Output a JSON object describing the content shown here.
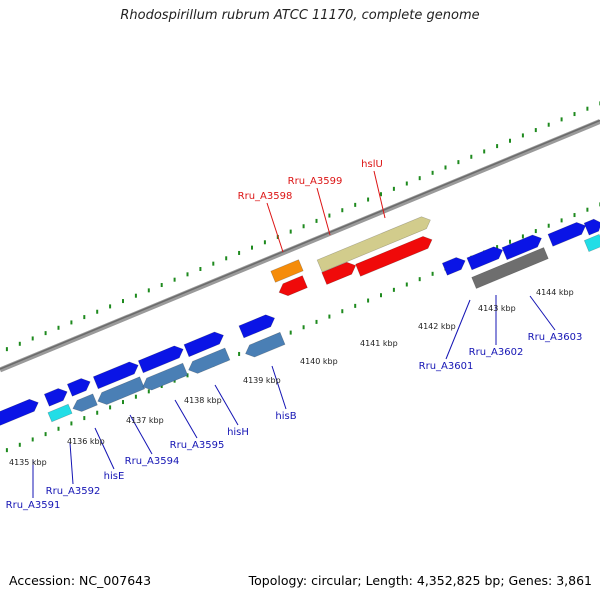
{
  "title": "Rhodospirillum rubrum ATCC 11170, complete genome",
  "footer": {
    "accession": "Accession: NC_007643",
    "info": "Topology: circular; Length: 4,352,825 bp; Genes: 3,861"
  },
  "colors": {
    "backbone": "#8c8c8c",
    "tick": "#1e8a1e",
    "forward_gene": "#0a14e6",
    "reverse_gene": "#4a7fb5",
    "trna": "#22dde6",
    "label_blue": "#1414b4",
    "label_red": "#dc1414",
    "hslU": "#d2cc8c",
    "red_gene": "#f00a0a",
    "orange_gene": "#f58c0a",
    "gray_gene": "#6e6e6e"
  },
  "scale": {
    "unit": "kbp",
    "labels": [
      "4135 kbp",
      "4136 kbp",
      "4137 kbp",
      "4138 kbp",
      "4139 kbp",
      "4140 kbp",
      "4141 kbp",
      "4142 kbp",
      "4143 kbp",
      "4144 kbp"
    ]
  },
  "gene_labels": {
    "blue": [
      "Rru_A3591",
      "Rru_A3592",
      "hisE",
      "Rru_A3594",
      "Rru_A3595",
      "hisH",
      "hisB",
      "Rru_A3601",
      "Rru_A3602",
      "Rru_A3603"
    ],
    "red": [
      "Rru_A3598",
      "Rru_A3599",
      "hslU"
    ]
  }
}
